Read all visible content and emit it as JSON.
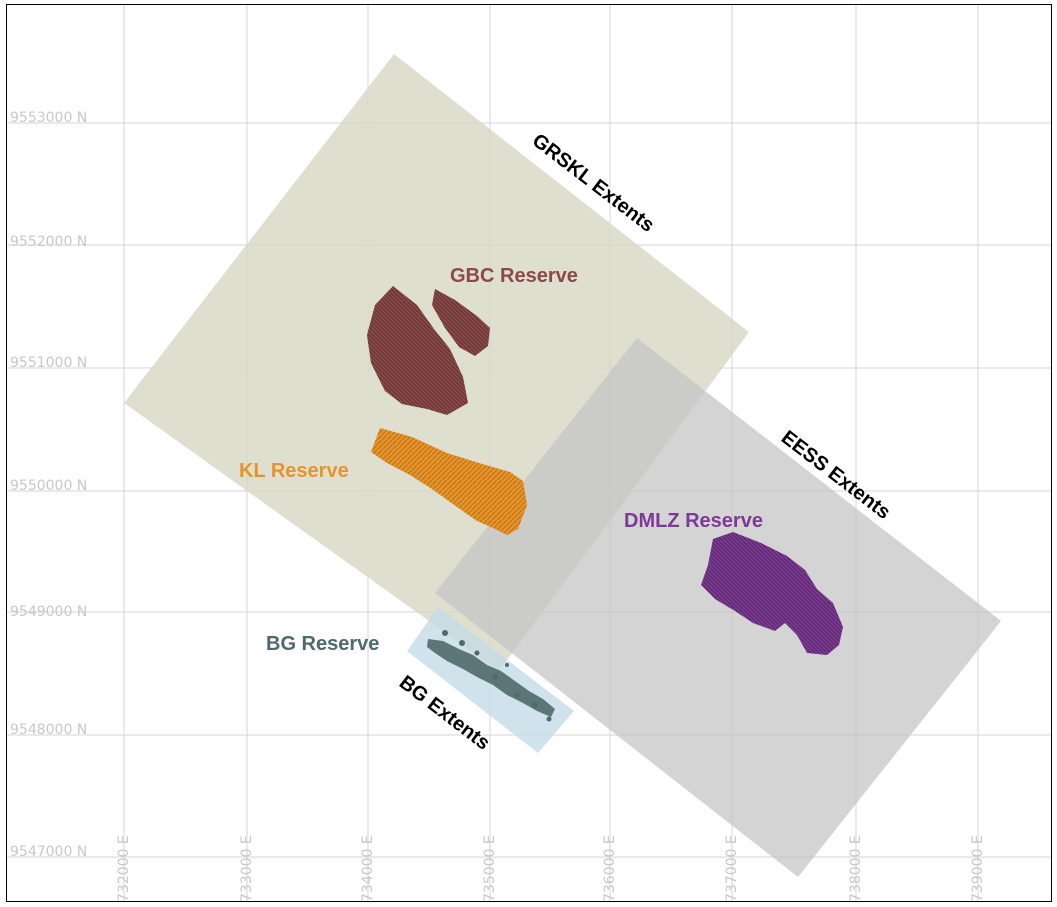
{
  "grid": {
    "easting_labels": [
      "732000 E",
      "733000 E",
      "734000 E",
      "735000 E",
      "736000 E",
      "737000 E",
      "738000 E",
      "739000 E"
    ],
    "northing_labels": [
      "9553000 N",
      "9552000 N",
      "9551000 N",
      "9550000 N",
      "9549000 N",
      "9548000 N",
      "9547000 N"
    ]
  },
  "extents": [
    {
      "id": "grskl",
      "label": "GRSKL Extents",
      "color": "#d8d8c4"
    },
    {
      "id": "eess",
      "label": "EESS Extents",
      "color": "#c4c4c4"
    },
    {
      "id": "bg",
      "label": "BG Extents",
      "color": "#c4dbe6"
    }
  ],
  "reserves": [
    {
      "id": "gbc",
      "label": "GBC Reserve",
      "color": "#8b4a48"
    },
    {
      "id": "kl",
      "label": "KL Reserve",
      "color": "#e8932a"
    },
    {
      "id": "dmlz",
      "label": "DMLZ Reserve",
      "color": "#7d3a94"
    },
    {
      "id": "bg",
      "label": "BG Reserve",
      "color": "#4f6a6a"
    }
  ]
}
